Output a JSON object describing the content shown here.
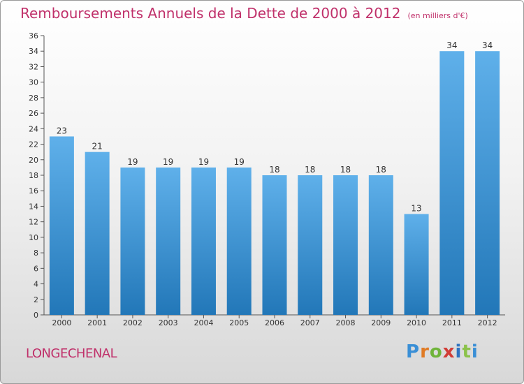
{
  "header": {
    "title": "Remboursements Annuels de la Dette de 2000 à 2012",
    "subtitle": "(en milliers d'€)"
  },
  "footer": {
    "commune": "LONGECHENAL",
    "logo_text": "Proxiti",
    "logo_colors": [
      "#3a8fd6",
      "#e07b25",
      "#6fb43a",
      "#d13c36",
      "#2f73c0",
      "#8bc24a"
    ]
  },
  "chart_data": {
    "type": "bar",
    "categories": [
      "2000",
      "2001",
      "2002",
      "2003",
      "2004",
      "2005",
      "2006",
      "2007",
      "2008",
      "2009",
      "2010",
      "2011",
      "2012"
    ],
    "values": [
      23,
      21,
      19,
      19,
      19,
      19,
      18,
      18,
      18,
      18,
      13,
      34,
      34
    ],
    "ylim": [
      0,
      36
    ],
    "yticks": [
      0,
      2,
      4,
      6,
      8,
      10,
      12,
      14,
      16,
      18,
      20,
      22,
      24,
      26,
      28,
      30,
      32,
      34,
      36
    ],
    "grid": false,
    "data_labels": true,
    "colors": {
      "bar_light": "#5fb0ea",
      "bar_dark": "#2277b8",
      "axis": "#555555",
      "text": "#333333"
    }
  }
}
